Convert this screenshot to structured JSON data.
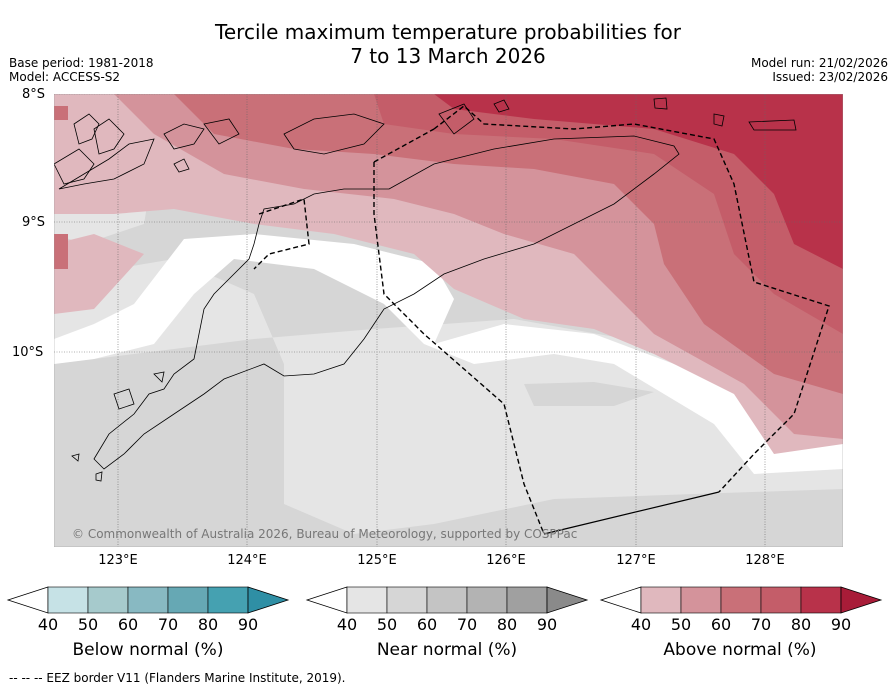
{
  "title_line1": "Tercile maximum temperature probabilities for",
  "title_line2": "7 to 13 March 2026",
  "base_period": "Base period: 1981-2018",
  "model": "Model: ACCESS-S2",
  "model_run": "Model run: 21/02/2026",
  "issued": "Issued: 23/02/2026",
  "latitude_labels": [
    "8°S",
    "9°S",
    "10°S"
  ],
  "longitude_labels": [
    "123°E",
    "124°E",
    "125°E",
    "126°E",
    "127°E",
    "128°E"
  ],
  "copyright": "© Commonwealth of Australia 2026, Bureau of Meteorology, supported by COSPPac",
  "colorbars": [
    {
      "label": "Below normal (%)",
      "ticks": [
        "40",
        "50",
        "60",
        "70",
        "80",
        "90"
      ],
      "colors": [
        "#c6e2e6",
        "#a6cacc",
        "#88b9c2",
        "#66a8b4",
        "#45a1b1",
        "#2f8fa5"
      ]
    },
    {
      "label": "Near normal (%)",
      "ticks": [
        "40",
        "50",
        "60",
        "70",
        "80",
        "90"
      ],
      "colors": [
        "#e5e5e5",
        "#d6d6d6",
        "#c4c4c4",
        "#b3b3b3",
        "#a0a0a0",
        "#8a8a8a"
      ]
    },
    {
      "label": "Above normal (%)",
      "ticks": [
        "40",
        "50",
        "60",
        "70",
        "80",
        "90"
      ],
      "colors": [
        "#e0b8be",
        "#d4939b",
        "#c97078",
        "#c45d69",
        "#b8324a",
        "#a81c38"
      ]
    }
  ],
  "footnote": "-- -- -- EEZ border V11 (Flanders Marine Institute, 2019)."
}
